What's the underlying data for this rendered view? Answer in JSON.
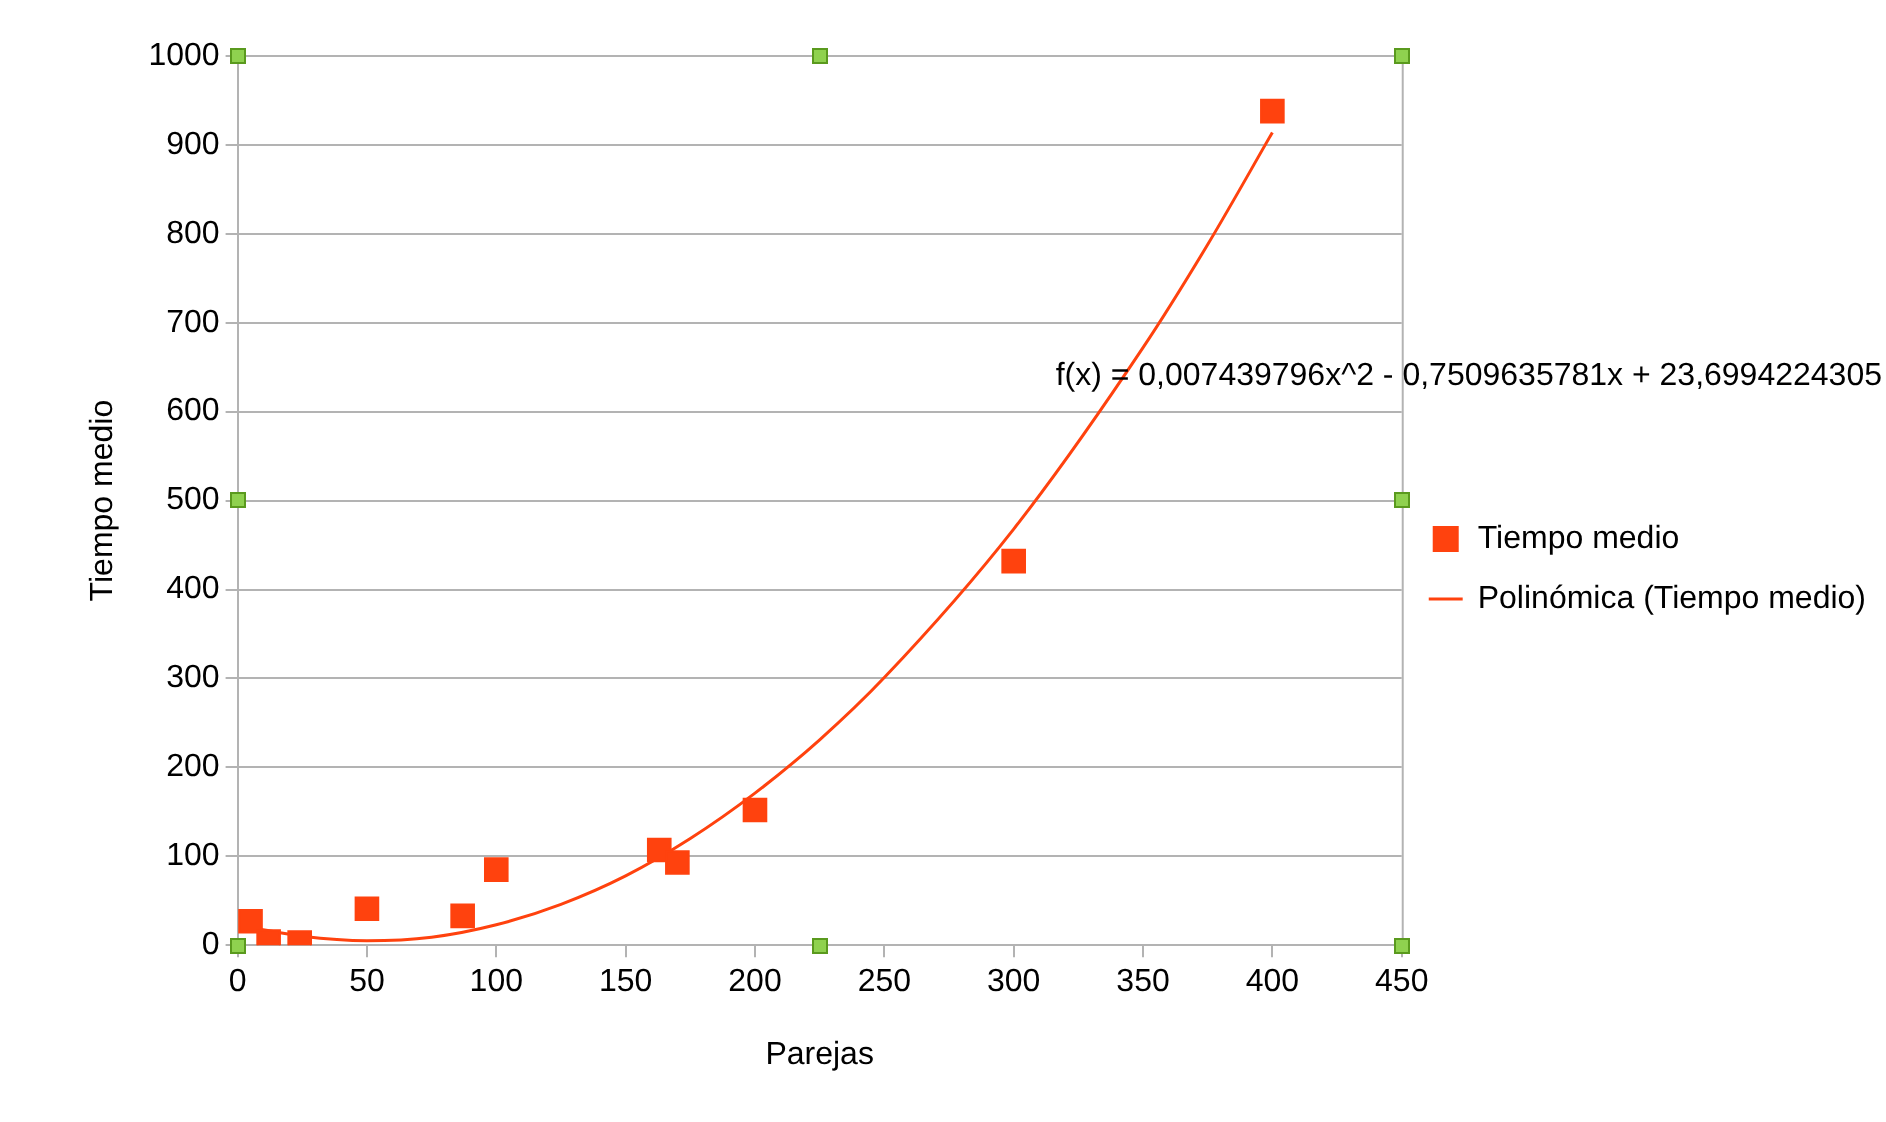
{
  "chart_data": {
    "type": "scatter",
    "xlabel": "Parejas",
    "ylabel": "Tiempo medio",
    "series": [
      {
        "name": "Tiempo medio",
        "color": "#ff420e",
        "marker": "square",
        "x": [
          5,
          12,
          24,
          50,
          87,
          100,
          163,
          170,
          200,
          300,
          400
        ],
        "values": [
          27,
          4,
          3,
          41,
          33,
          85,
          107,
          93,
          152,
          432,
          938
        ]
      },
      {
        "name": "Polinómica (Tiempo medio)",
        "type": "line",
        "color": "#ff420e",
        "marker": "none",
        "x": [
          5,
          25,
          50,
          75,
          100,
          125,
          150,
          175,
          200,
          225,
          250,
          300,
          350,
          375,
          400
        ],
        "values": [
          20,
          10,
          5,
          9,
          23,
          46,
          78,
          120,
          171,
          231,
          301,
          468,
          672,
          788,
          914
        ]
      }
    ],
    "xlim": [
      0,
      450
    ],
    "xticks": [
      0,
      50,
      100,
      150,
      200,
      250,
      300,
      350,
      400,
      450
    ],
    "ylim": [
      0,
      1000
    ],
    "yticks": [
      0,
      100,
      200,
      300,
      400,
      500,
      600,
      700,
      800,
      900,
      1000
    ],
    "grid": "y",
    "legend": "right",
    "annotations": [
      "f(x) = 0,007439796x^2 - 0,7509635781x + 23,6994224305"
    ]
  }
}
